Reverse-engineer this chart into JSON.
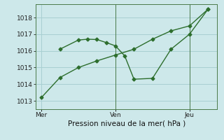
{
  "background_color": "#cde8ea",
  "grid_color": "#a8cfd2",
  "line_color": "#2d6e2d",
  "marker_color": "#2d6e2d",
  "xlabel": "Pression niveau de la mer( hPa )",
  "ylim": [
    1012.5,
    1018.8
  ],
  "yticks": [
    1013,
    1014,
    1015,
    1016,
    1017,
    1018
  ],
  "xtick_positions": [
    0,
    4,
    8
  ],
  "xtick_labels": [
    "Mer",
    "Ven",
    "Jeu"
  ],
  "vline_positions": [
    4,
    8
  ],
  "line1_x": [
    0,
    1,
    2,
    3,
    4,
    5,
    6,
    7,
    8,
    9
  ],
  "line1_y": [
    1013.2,
    1014.4,
    1015.0,
    1015.4,
    1015.75,
    1016.1,
    1016.7,
    1017.2,
    1017.5,
    1018.5
  ],
  "line2_x": [
    1,
    2,
    2.5,
    3,
    3.5,
    4,
    4.5,
    5,
    6,
    7,
    8,
    9
  ],
  "line2_y": [
    1016.1,
    1016.65,
    1016.7,
    1016.68,
    1016.5,
    1016.3,
    1015.7,
    1014.3,
    1014.35,
    1016.1,
    1017.0,
    1018.5
  ]
}
